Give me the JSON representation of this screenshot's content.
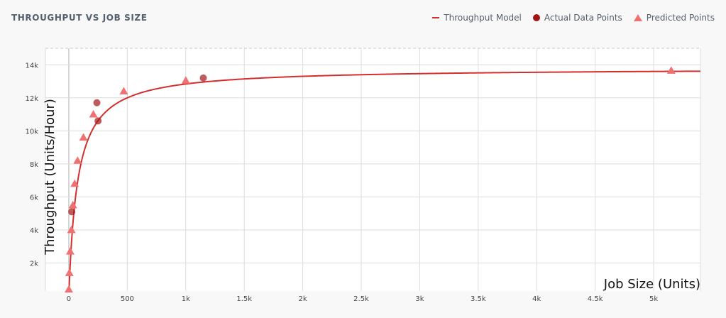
{
  "title": "THROUGHPUT VS JOB SIZE",
  "legend": {
    "line": "Throughput Model",
    "actual": "Actual Data Points",
    "predicted": "Predicted Points"
  },
  "colors": {
    "model_line": "#d32f2f",
    "actual": "#a31515",
    "predicted": "#f07171",
    "grid": "#dcdcdc"
  },
  "chart_data": {
    "type": "scatter",
    "title": "THROUGHPUT VS JOB SIZE",
    "xlabel": "Job Size (Units)",
    "ylabel": "Throughput (Units/Hour)",
    "xlim": [
      -200,
      5400
    ],
    "ylim": [
      300,
      15000
    ],
    "x_ticks": [
      0,
      500,
      1000,
      1500,
      2000,
      2500,
      3000,
      3500,
      4000,
      4500,
      5000
    ],
    "x_tick_labels": [
      "0",
      "500",
      "1k",
      "1.5k",
      "2k",
      "2.5k",
      "3k",
      "3.5k",
      "4k",
      "4.5k",
      "5k"
    ],
    "y_ticks": [
      2000,
      4000,
      6000,
      8000,
      10000,
      12000,
      14000
    ],
    "y_tick_labels": [
      "2k",
      "4k",
      "6k",
      "8k",
      "10k",
      "12k",
      "14k"
    ],
    "grid": true,
    "legend_position": "top-right",
    "series": [
      {
        "name": "Throughput Model",
        "kind": "line",
        "model": {
          "vmax": 13800,
          "k": 75,
          "x_start": 0,
          "x_end": 5400
        }
      },
      {
        "name": "Actual Data Points",
        "kind": "scatter",
        "marker": "circle",
        "x": [
          25,
          240,
          250,
          1150
        ],
        "y": [
          5100,
          11700,
          10600,
          13200
        ]
      },
      {
        "name": "Predicted Points",
        "kind": "scatter",
        "marker": "triangle",
        "x": [
          0,
          5,
          12,
          22,
          35,
          50,
          75,
          125,
          210,
          470,
          1000,
          5150
        ],
        "y": [
          400,
          1400,
          2700,
          4000,
          5500,
          6800,
          8200,
          9600,
          11000,
          12400,
          13050,
          13650
        ]
      }
    ]
  }
}
